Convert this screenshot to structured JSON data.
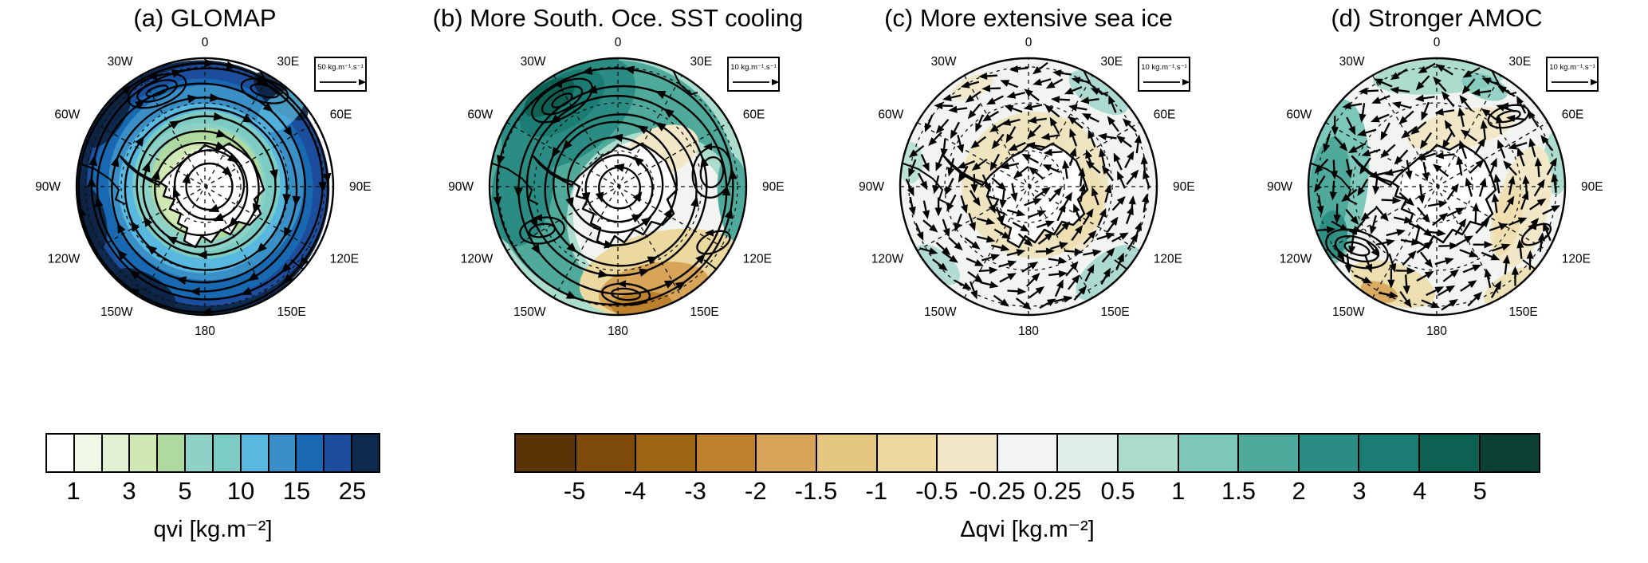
{
  "panels": [
    {
      "id": "a",
      "title": "(a) GLOMAP",
      "vector_scale_label": "50 kg.m⁻¹.s⁻¹"
    },
    {
      "id": "b",
      "title": "(b) More South. Oce. SST cooling",
      "vector_scale_label": "10 kg.m⁻¹.s⁻¹"
    },
    {
      "id": "c",
      "title": "(c) More extensive sea ice",
      "vector_scale_label": "10 kg.m⁻¹.s⁻¹"
    },
    {
      "id": "d",
      "title": "(d) Stronger AMOC",
      "vector_scale_label": "10 kg.m⁻¹.s⁻¹"
    }
  ],
  "map_lon_labels": [
    "0",
    "30E",
    "60E",
    "90E",
    "120E",
    "150E",
    "180",
    "150W",
    "120W",
    "90W",
    "60W",
    "30W"
  ],
  "colorbars": {
    "qvi": {
      "title": "qvi [kg.m⁻²]",
      "tick_labels": [
        "1",
        "3",
        "5",
        "10",
        "15",
        "25"
      ],
      "tick_boundary_indices": [
        1,
        3,
        5,
        7,
        9,
        11
      ],
      "cell_colors": [
        "#ffffff",
        "#f2f8e7",
        "#e3f1d3",
        "#cfe8b4",
        "#aeda9f",
        "#8ed2c7",
        "#7cccc3",
        "#58b8e0",
        "#3a90c6",
        "#1868b2",
        "#1d4e9e",
        "#0e2a4e"
      ]
    },
    "dqvi": {
      "title": "Δqvi [kg.m⁻²]",
      "tick_labels": [
        "-5",
        "-4",
        "-3",
        "-2",
        "-1.5",
        "-1",
        "-0.5",
        "-0.25",
        "0.25",
        "0.5",
        "1",
        "1.5",
        "2",
        "3",
        "4",
        "5"
      ],
      "cell_colors": [
        "#5a3306",
        "#7d4a0a",
        "#9d6413",
        "#bd802d",
        "#d7a458",
        "#e6c77f",
        "#ebd9a0",
        "#f2e7c7",
        "#f2f4f1",
        "#e0eee9",
        "#abdccd",
        "#7dc8ba",
        "#4faa9b",
        "#2a8c82",
        "#1a7c72",
        "#0e6053",
        "#0c4034"
      ]
    }
  },
  "chart_data": {
    "type": "heatmap",
    "subtype": "south_polar_stereographic_maps_with_vector_field",
    "projection": "South polar stereographic, 0° at top, 90E right, 180 at bottom, 90W left; dashed graticule every 30° longitude; Antarctica outlined at center",
    "panels": [
      {
        "label": "(a) GLOMAP",
        "quantity": "qvi [kg.m⁻²]",
        "vector_reference": "50 kg.m⁻¹.s⁻¹",
        "pattern": "Total column water vapour: <1 kg.m⁻² over Antarctica increasing outward through 3–10 kg.m⁻² (teal/blue) to >15–25 kg.m⁻² (dark navy) at the map edge; clockwise (westerly) circumpolar moisture-flux streamlines with eddies near 30W and 30E"
      },
      {
        "label": "(b) More South. Oce. SST cooling",
        "quantity": "Δqvi [kg.m⁻²]",
        "vector_reference": "10 kg.m⁻¹.s⁻¹",
        "pattern": "Positive Δqvi (≈1–4 kg.m⁻², teal) over most of the Atlantic/Indian/western-Pacific rim, strongest (3–4) near 30–60W; negative Δqvi (≈−1 to −3, tan/brown) in the 120E–180 sector south of Australia/Ross Sea; near-zero over the pole; convoluted streamlines with closed eddies"
      },
      {
        "label": "(c) More extensive sea ice",
        "quantity": "Δqvi [kg.m⁻²]",
        "vector_reference": "10 kg.m⁻¹.s⁻¹",
        "pattern": "Weak negative Δqvi (≈−0.25 to −1, pale tan) in a ring around Antarctica; small positive patches (0.25–0.5, pale teal) near the rim (30E, 120E, 150W); elsewhere near zero; field shown by small quiver arrows, broadly easterly/cyclonic"
      },
      {
        "label": "(d) Stronger AMOC",
        "quantity": "Δqvi [kg.m⁻²]",
        "vector_reference": "10 kg.m⁻¹.s⁻¹",
        "pattern": "Patchy weak anomalies: positive (0.25–1.5, teal) along 90W–150W and near 0°; negative arcs (−0.25 to −1, tan) near 60–120E, north of the pole and in the 150W–180 sector; swirling streamlines with a prominent eddy near 120W"
      }
    ],
    "qvi_scale_levels": [
      "1",
      "3",
      "5",
      "10",
      "15",
      "25"
    ],
    "dqvi_scale_levels": [
      "-5",
      "-4",
      "-3",
      "-2",
      "-1.5",
      "-1",
      "-0.5",
      "-0.25",
      "0.25",
      "0.5",
      "1",
      "1.5",
      "2",
      "3",
      "4",
      "5"
    ]
  }
}
